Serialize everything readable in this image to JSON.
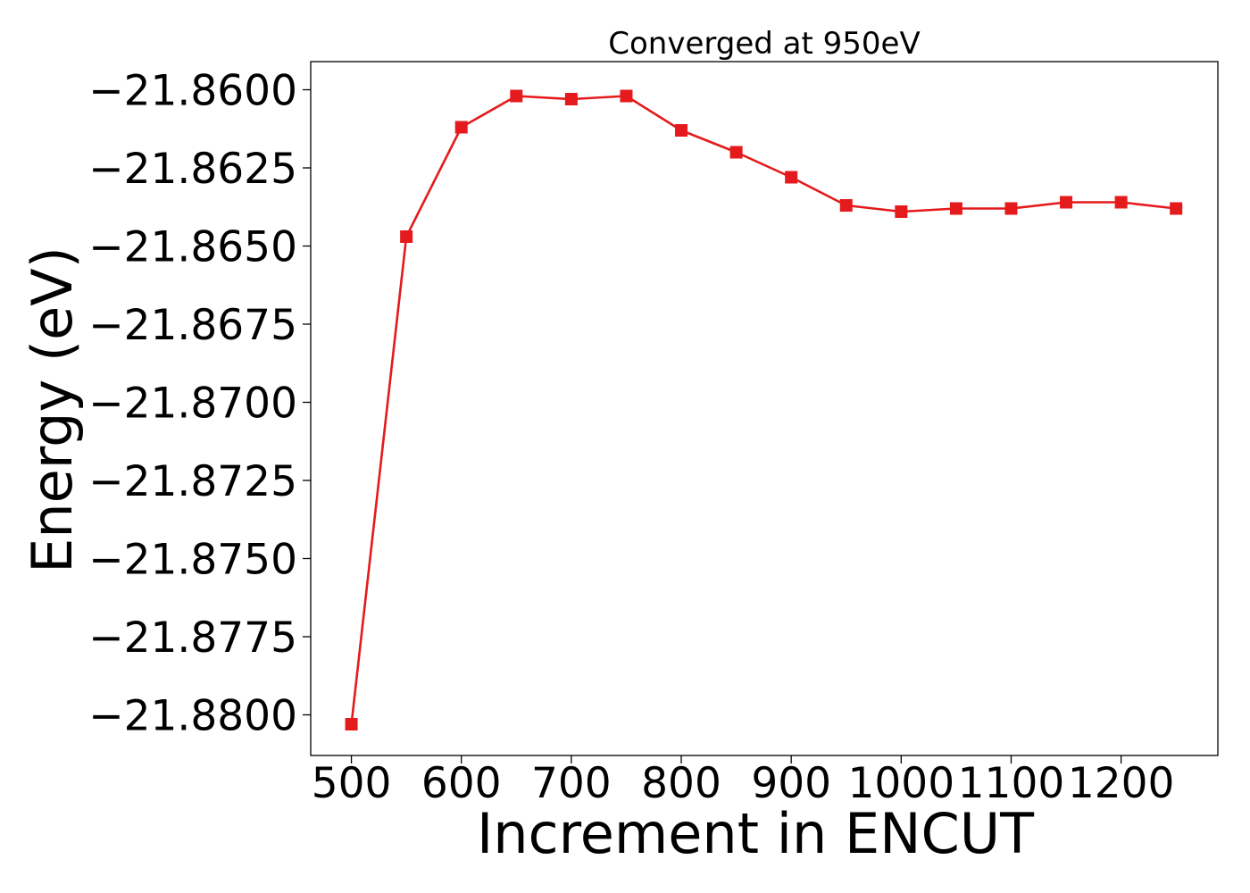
{
  "chart_data": {
    "type": "line",
    "title": "Converged at 950eV",
    "xlabel": "Increment in ENCUT",
    "ylabel": "Energy (eV)",
    "xlim": [
      463,
      1288
    ],
    "ylim": [
      -21.8813,
      -21.8591
    ],
    "x_ticks": [
      500,
      600,
      700,
      800,
      900,
      1000,
      1100,
      1200
    ],
    "x_tick_labels": [
      "500",
      "600",
      "700",
      "800",
      "900",
      "1000",
      "1100",
      "1200"
    ],
    "y_ticks": [
      -21.86,
      -21.8625,
      -21.865,
      -21.8675,
      -21.87,
      -21.8725,
      -21.875,
      -21.8775,
      -21.88
    ],
    "y_tick_labels": [
      "−21.8600",
      "−21.8625",
      "−21.8650",
      "−21.8675",
      "−21.8700",
      "−21.8725",
      "−21.8750",
      "−21.8775",
      "−21.8800"
    ],
    "grid": false,
    "series": [
      {
        "color": "#e41a1c",
        "marker": "square",
        "x": [
          500,
          550,
          600,
          650,
          700,
          750,
          800,
          850,
          900,
          950,
          1000,
          1050,
          1100,
          1150,
          1200,
          1250
        ],
        "y": [
          -21.8803,
          -21.8647,
          -21.8612,
          -21.8602,
          -21.8603,
          -21.8602,
          -21.8613,
          -21.862,
          -21.8628,
          -21.8637,
          -21.8639,
          -21.8638,
          -21.8638,
          -21.8636,
          -21.8636,
          -21.8638
        ]
      }
    ]
  }
}
